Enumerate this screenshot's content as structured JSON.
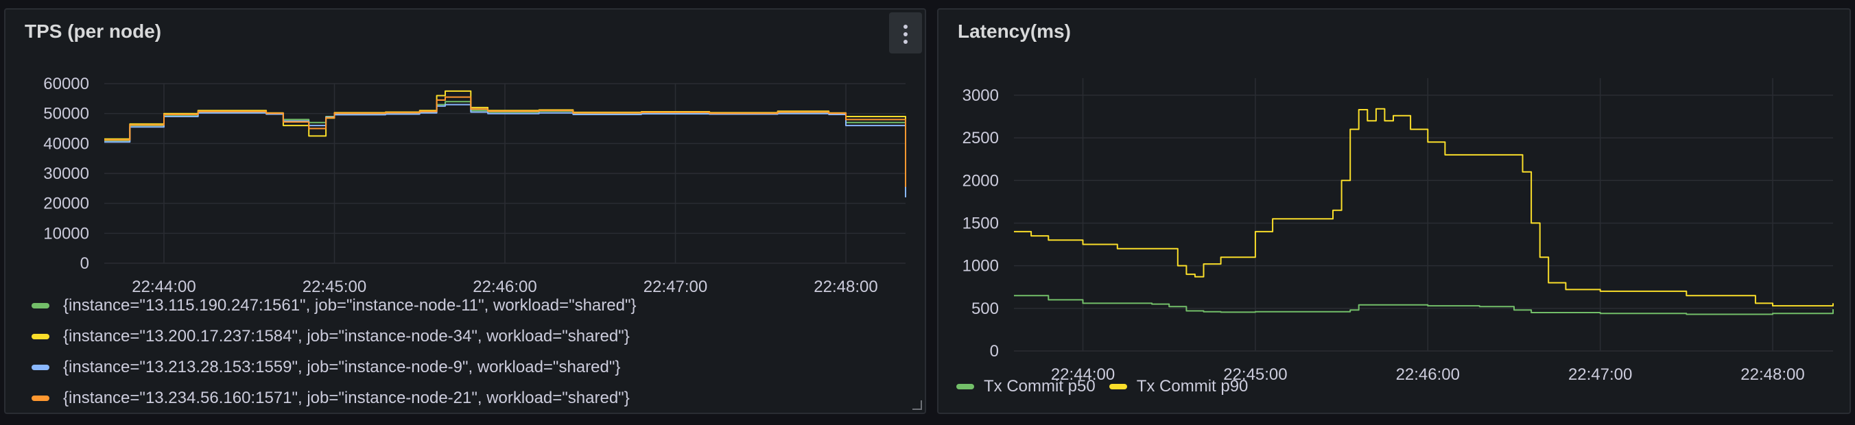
{
  "panels": {
    "tps": {
      "title": "TPS (per node)"
    },
    "latency": {
      "title": "Latency(ms)"
    }
  },
  "colors": {
    "green": "#73bf69",
    "yellow": "#fade2a",
    "blue": "#8ab8ff",
    "orange": "#ff9830",
    "red": "#f2495c",
    "purple": "#b877d9",
    "grid": "#2a2d33",
    "axis_text": "#ccccdc"
  },
  "chart_data": [
    {
      "type": "line",
      "title": "TPS (per node)",
      "x_ticks": [
        "22:44:00",
        "22:45:00",
        "22:46:00",
        "22:47:00",
        "22:48:00"
      ],
      "y_ticks": [
        0,
        10000,
        20000,
        30000,
        40000,
        50000,
        60000
      ],
      "x_range_minutes_from_first_tick": [
        -0.35,
        4.35
      ],
      "ylim": [
        0,
        60000
      ],
      "grid": true,
      "legend_position": "bottom",
      "series": [
        {
          "name": "{instance=\"13.115.190.247:1561\", job=\"instance-node-11\", workload=\"shared\"}",
          "color": "#73bf69",
          "x": [
            -0.35,
            -0.2,
            0,
            0.2,
            0.6,
            0.7,
            0.85,
            0.95,
            1.0,
            1.3,
            1.5,
            1.6,
            1.65,
            1.8,
            1.9,
            2.2,
            2.4,
            2.8,
            3.2,
            3.6,
            3.9,
            4.0,
            4.35
          ],
          "y": [
            41000,
            46000,
            49500,
            50500,
            50000,
            48000,
            47000,
            49000,
            50000,
            50000,
            50500,
            53000,
            54000,
            51000,
            50500,
            50800,
            50000,
            50200,
            50000,
            50300,
            50000,
            47000,
            24000
          ]
        },
        {
          "name": "{instance=\"13.200.17.237:1584\", job=\"instance-node-34\", workload=\"shared\"}",
          "color": "#fade2a",
          "x": [
            -0.35,
            -0.2,
            0,
            0.2,
            0.6,
            0.7,
            0.85,
            0.95,
            1.0,
            1.3,
            1.5,
            1.6,
            1.65,
            1.8,
            1.9,
            2.2,
            2.4,
            2.8,
            3.2,
            3.6,
            3.9,
            4.0,
            4.35
          ],
          "y": [
            41500,
            46500,
            50000,
            51000,
            50200,
            46000,
            42500,
            48500,
            50300,
            50500,
            51000,
            56000,
            57500,
            52000,
            51000,
            51200,
            50400,
            50600,
            50300,
            50800,
            50200,
            49000,
            27000
          ]
        },
        {
          "name": "{instance=\"13.213.28.153:1559\", job=\"instance-node-9\", workload=\"shared\"}",
          "color": "#8ab8ff",
          "x": [
            -0.35,
            -0.2,
            0,
            0.2,
            0.6,
            0.7,
            0.85,
            0.95,
            1.0,
            1.3,
            1.5,
            1.6,
            1.65,
            1.8,
            1.9,
            2.2,
            2.4,
            2.8,
            3.2,
            3.6,
            3.9,
            4.0,
            4.35
          ],
          "y": [
            40500,
            45500,
            49000,
            50200,
            49800,
            47500,
            46000,
            48800,
            49600,
            49800,
            50200,
            52500,
            53000,
            50500,
            50000,
            50200,
            49700,
            49900,
            49800,
            50000,
            49700,
            46000,
            22000
          ]
        },
        {
          "name": "{instance=\"13.234.56.160:1571\", job=\"instance-node-21\", workload=\"shared\"}",
          "color": "#ff9830",
          "x": [
            -0.35,
            -0.2,
            0,
            0.2,
            0.6,
            0.7,
            0.85,
            0.95,
            1.0,
            1.3,
            1.5,
            1.6,
            1.65,
            1.8,
            1.9,
            2.2,
            2.4,
            2.8,
            3.2,
            3.6,
            3.9,
            4.0,
            4.35
          ],
          "y": [
            41200,
            46200,
            49700,
            50700,
            50100,
            47200,
            45000,
            48600,
            50100,
            50300,
            50700,
            54500,
            55500,
            51500,
            50800,
            51000,
            50200,
            50400,
            50100,
            50500,
            50100,
            48000,
            25500
          ]
        }
      ]
    },
    {
      "type": "line",
      "title": "Latency(ms)",
      "x_ticks": [
        "22:44:00",
        "22:45:00",
        "22:46:00",
        "22:47:00",
        "22:48:00"
      ],
      "y_ticks": [
        0,
        500,
        1000,
        1500,
        2000,
        2500,
        3000
      ],
      "x_range_minutes_from_first_tick": [
        -0.4,
        4.35
      ],
      "ylim": [
        0,
        3200
      ],
      "grid": true,
      "legend_position": "bottom",
      "series": [
        {
          "name": "Tx Commit p50",
          "color": "#73bf69",
          "x": [
            -0.4,
            -0.2,
            0,
            0.4,
            0.5,
            0.6,
            0.7,
            0.8,
            1.0,
            1.3,
            1.55,
            1.6,
            2.0,
            2.3,
            2.5,
            2.6,
            3.0,
            3.5,
            4.0,
            4.35
          ],
          "y": [
            650,
            600,
            560,
            550,
            520,
            470,
            460,
            455,
            460,
            460,
            480,
            540,
            530,
            520,
            480,
            450,
            440,
            430,
            440,
            490
          ]
        },
        {
          "name": "Tx Commit p90",
          "color": "#fade2a",
          "x": [
            -0.4,
            -0.3,
            -0.2,
            0,
            0.2,
            0.45,
            0.55,
            0.6,
            0.65,
            0.7,
            0.8,
            1.0,
            1.1,
            1.42,
            1.45,
            1.5,
            1.55,
            1.6,
            1.65,
            1.7,
            1.75,
            1.8,
            1.9,
            2.0,
            2.1,
            2.5,
            2.55,
            2.6,
            2.65,
            2.7,
            2.8,
            3.0,
            3.3,
            3.5,
            3.9,
            4.0,
            4.35
          ],
          "y": [
            1400,
            1350,
            1300,
            1250,
            1200,
            1200,
            1000,
            900,
            870,
            1020,
            1100,
            1400,
            1550,
            1550,
            1650,
            2000,
            2600,
            2830,
            2700,
            2840,
            2700,
            2760,
            2600,
            2450,
            2300,
            2300,
            2100,
            1500,
            1100,
            800,
            720,
            700,
            700,
            650,
            560,
            530,
            560
          ]
        }
      ]
    }
  ]
}
